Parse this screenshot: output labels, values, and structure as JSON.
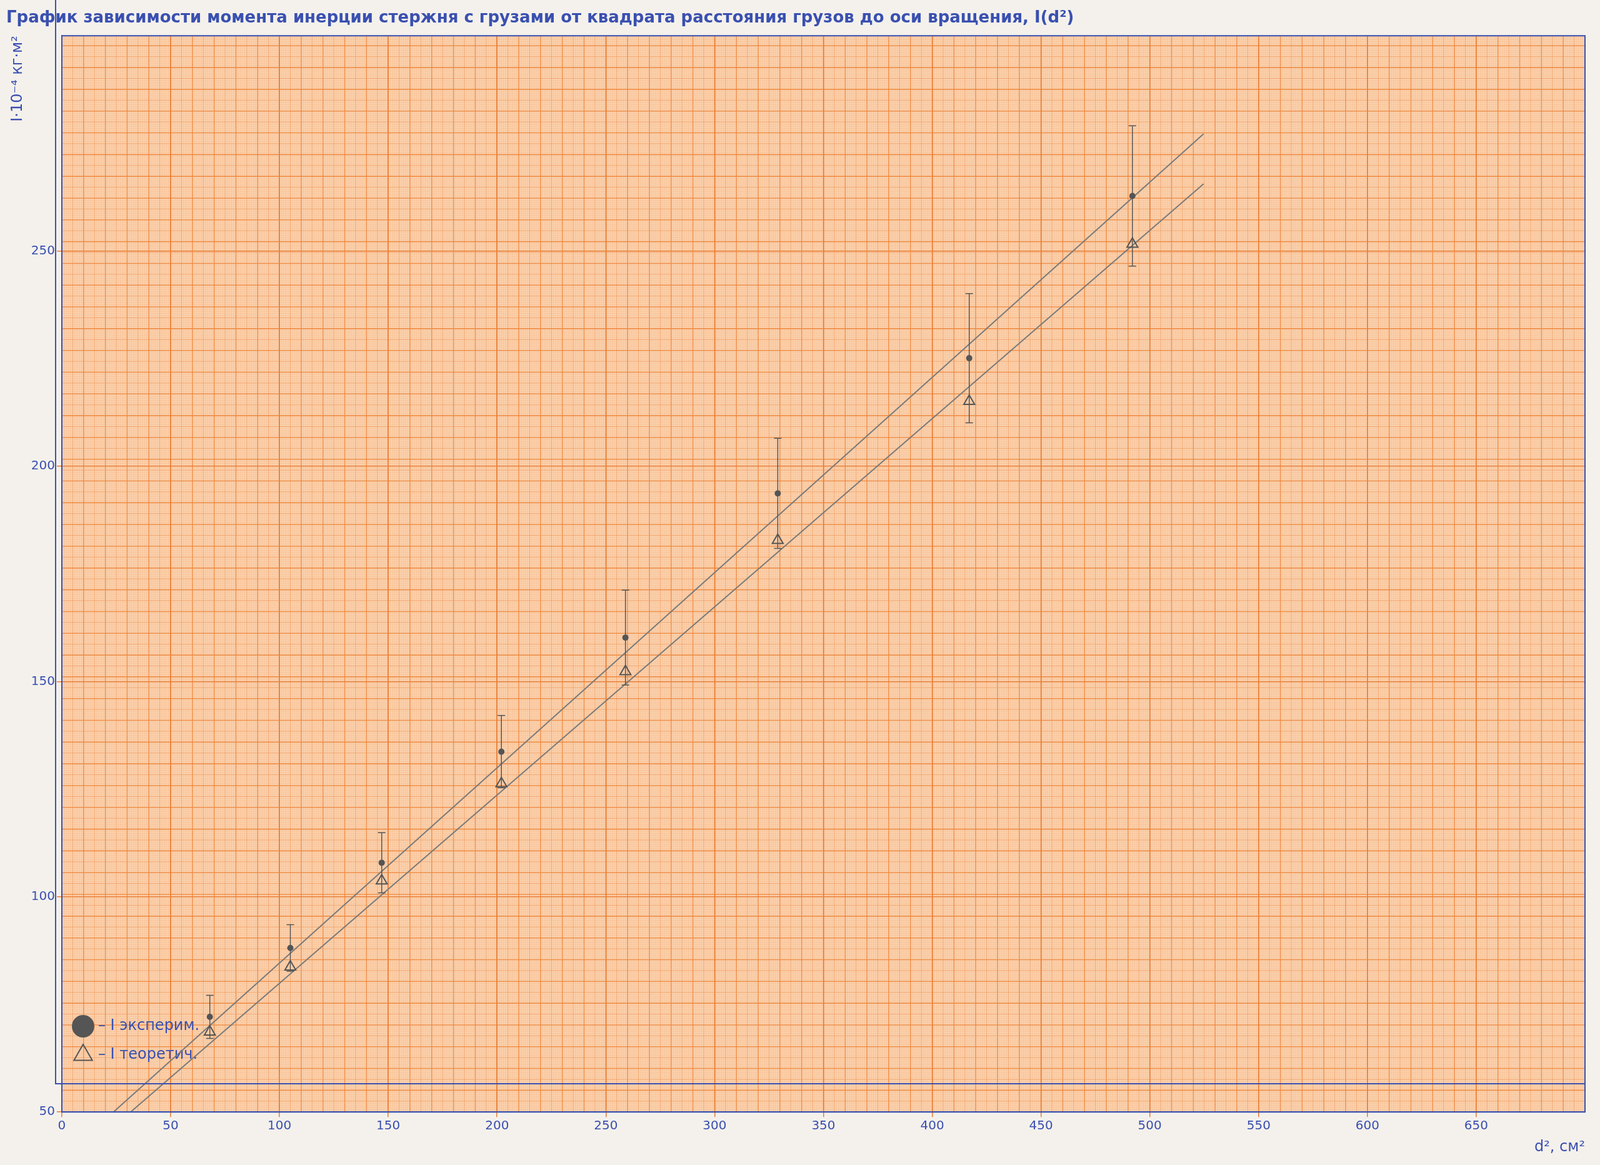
{
  "chart_data": {
    "type": "scatter",
    "title": "График зависимости момента инерции стержня с грузами от квадрата расстояния грузов до оси вращения, I(d²)",
    "x_label": "d², см²",
    "y_label": "I·10⁻⁴ кг·м²",
    "xlim": [
      0,
      700
    ],
    "xticks": [
      0,
      50,
      100,
      150,
      200,
      250,
      300,
      350,
      400,
      450,
      500,
      550,
      600,
      650
    ],
    "ylim": [
      50,
      300
    ],
    "yticks": [
      50,
      100,
      150,
      200,
      250
    ],
    "grid": true,
    "legend": "upper right",
    "x": [
      68,
      105,
      147,
      202,
      259,
      329,
      417,
      492
    ],
    "series": [
      {
        "name": "– I эксперим.",
        "color": "#555555",
        "marker": "circle",
        "values": [
          72.1,
          88.1,
          107.9,
          133.7,
          160.2,
          193.7,
          225.1,
          262.8
        ],
        "errors": [
          5,
          5.4,
          7,
          8.4,
          11,
          12.8,
          15,
          16.3
        ]
      },
      {
        "name": "– I теоретич.",
        "color": "#555555",
        "marker": "triangle",
        "values": [
          68.6,
          83.7,
          103.7,
          126.3,
          152.3,
          182.8,
          215.1,
          251.6
        ]
      },
      {
        "type": "line",
        "color": "#7a7a7a",
        "line_style": "solid",
        "x": [
          23.7,
          524.7
        ],
        "values": [
          50,
          277.2
        ]
      },
      {
        "type": "line",
        "color": "#7a7a7a",
        "line_style": "solid",
        "x": [
          31.6,
          524.7
        ],
        "values": [
          50,
          265.6
        ]
      }
    ]
  }
}
